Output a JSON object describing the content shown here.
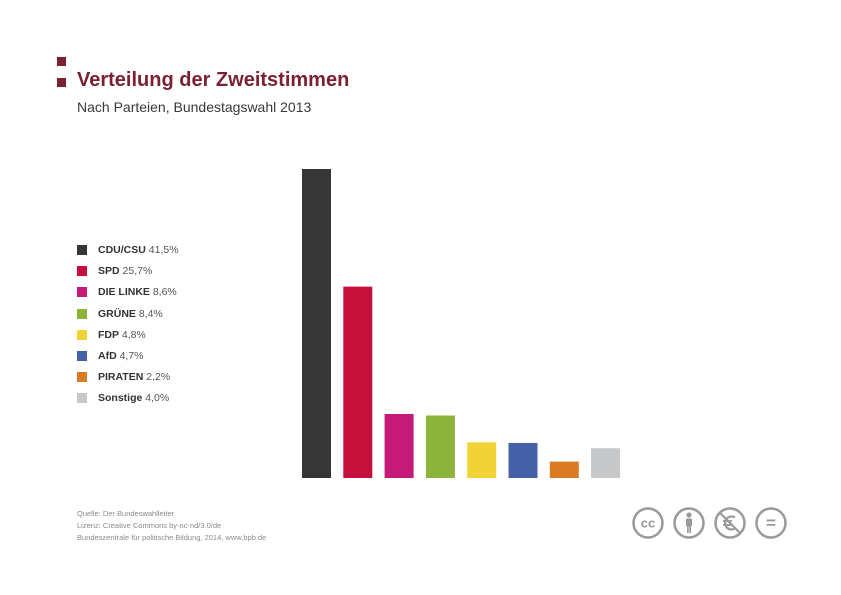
{
  "header": {
    "title": "Verteilung der Zweitstimmen",
    "subtitle": "Nach Parteien, Bundestagswahl 2013"
  },
  "chart_data": {
    "type": "bar",
    "title": "Verteilung der Zweitstimmen",
    "subtitle": "Nach Parteien, Bundestagswahl 2013",
    "categories": [
      "CDU/CSU",
      "SPD",
      "DIE LINKE",
      "GRÜNE",
      "FDP",
      "AfD",
      "PIRATEN",
      "Sonstige"
    ],
    "values": [
      41.5,
      25.7,
      8.6,
      8.4,
      4.8,
      4.7,
      2.2,
      4.0
    ],
    "value_labels": [
      "41,5%",
      "25,7%",
      "8,6%",
      "8,4%",
      "4,8%",
      "4,7%",
      "2,2%",
      "4,0%"
    ],
    "colors": [
      "#363636",
      "#c4103b",
      "#c51a77",
      "#8db43a",
      "#f2d337",
      "#4461a7",
      "#dc7a23",
      "#c7c8ca"
    ],
    "ylim": [
      0,
      41.5
    ],
    "grid": false,
    "legend_position": "left",
    "xlabel": "",
    "ylabel": ""
  },
  "footer": {
    "source": "Quelle: Der Bundeswahlleiter",
    "license": "Lizenz: Creative Commons by-nc-nd/3.0/de",
    "publisher": "Bundeszentrale für politische Bildung, 2014, www.bpb.de"
  },
  "license_icons": {
    "icon_color": "#9a9a9a",
    "cc_text": "cc",
    "nd_text": "="
  },
  "brand_color": "#7a2234"
}
